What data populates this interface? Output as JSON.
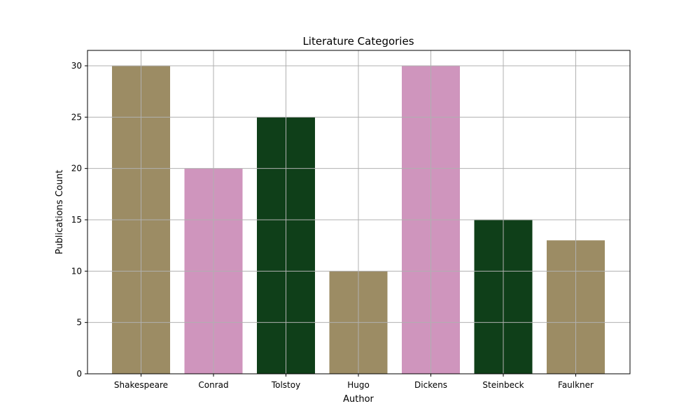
{
  "chart_data": {
    "type": "bar",
    "title": "Literature Categories",
    "xlabel": "Author",
    "ylabel": "Publications Count",
    "categories": [
      "Shakespeare",
      "Conrad",
      "Tolstoy",
      "Hugo",
      "Dickens",
      "Steinbeck",
      "Faulkner"
    ],
    "values": [
      30,
      20,
      25,
      10,
      30,
      15,
      13
    ],
    "bar_colors": [
      "#9c8c64",
      "#cf95bd",
      "#0f3f19",
      "#9c8c64",
      "#cf95bd",
      "#0f3f19",
      "#9c8c64"
    ],
    "ylim": [
      0,
      31.5
    ],
    "yticks": [
      0,
      5,
      10,
      15,
      20,
      25,
      30
    ],
    "grid": true,
    "legend": false
  }
}
